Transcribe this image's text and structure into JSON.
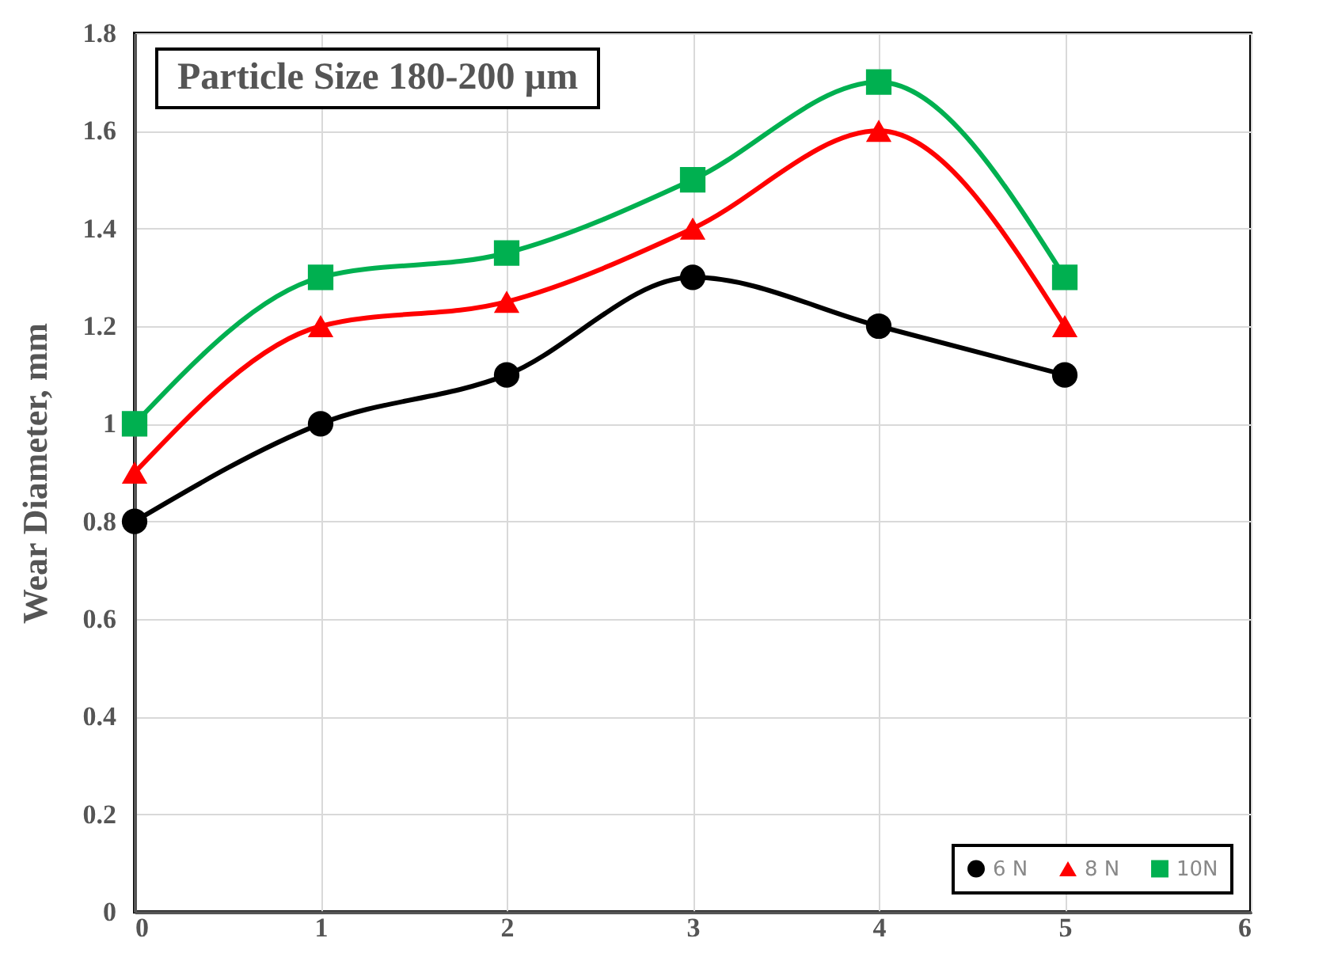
{
  "chart_data": {
    "type": "line",
    "title": "Particle Size 180-200 µm",
    "ylabel": "Wear Diameter, mm",
    "x": [
      0,
      1,
      2,
      3,
      4,
      5
    ],
    "series": [
      {
        "name": "6 N",
        "color": "#000000",
        "marker": "circle",
        "values": [
          0.8,
          1.0,
          1.1,
          1.3,
          1.2,
          1.1
        ]
      },
      {
        "name": "8 N",
        "color": "#ff0000",
        "marker": "triangle",
        "values": [
          0.9,
          1.2,
          1.25,
          1.4,
          1.6,
          1.2
        ]
      },
      {
        "name": "10N",
        "color": "#00b050",
        "marker": "square",
        "values": [
          1.0,
          1.3,
          1.35,
          1.5,
          1.7,
          1.3
        ]
      }
    ],
    "xlim": [
      0,
      6
    ],
    "xticks": [
      0,
      1,
      2,
      3,
      4,
      5,
      6
    ],
    "ylim": [
      0,
      1.8
    ],
    "yticks": [
      0,
      0.2,
      0.4,
      0.6,
      0.8,
      1,
      1.2,
      1.4,
      1.6,
      1.8
    ],
    "grid": true,
    "legend": "bottom right"
  }
}
